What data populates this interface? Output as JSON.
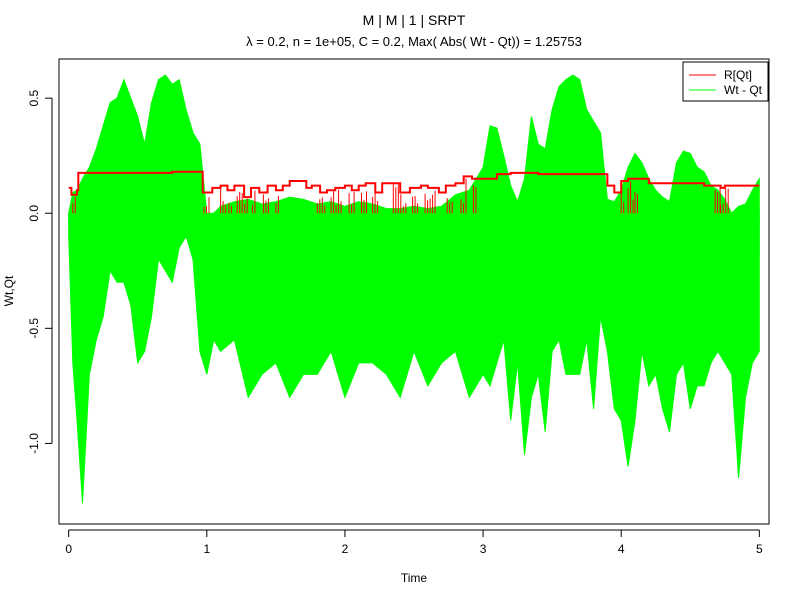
{
  "chart_data": {
    "type": "line",
    "title": "M | M | 1 | SRPT",
    "subtitle": "λ = 0.2, n = 1e+05, C = 0.2, Max( Abs( Wt - Qt)) = 1.25753",
    "xlabel": "Time",
    "ylabel": "Wt,Qt",
    "xlim": [
      -0.07,
      5.07
    ],
    "ylim": [
      -1.35,
      0.67
    ],
    "x_ticks": [
      0,
      1,
      2,
      3,
      4,
      5
    ],
    "x_tick_labels": [
      "0",
      "1",
      "2",
      "3",
      "4",
      "5"
    ],
    "y_ticks": [
      -1.0,
      -0.5,
      0.0,
      0.5
    ],
    "y_tick_labels": [
      "-1.0",
      "-0.5",
      "0.0",
      "0.5"
    ],
    "grid": false,
    "legend_position": "top-right",
    "series": [
      {
        "name": "R[Qt]",
        "color": "#ff0000",
        "style": "step",
        "x": [
          0.0,
          0.02,
          0.06,
          0.07,
          0.5,
          0.75,
          0.95,
          0.97,
          1.04,
          1.1,
          1.15,
          1.2,
          1.27,
          1.32,
          1.38,
          1.44,
          1.5,
          1.55,
          1.6,
          1.65,
          1.72,
          1.76,
          1.82,
          1.87,
          1.93,
          2.0,
          2.05,
          2.1,
          2.15,
          2.22,
          2.27,
          2.3,
          2.4,
          2.47,
          2.55,
          2.6,
          2.68,
          2.73,
          2.8,
          2.86,
          2.92,
          3.05,
          3.1,
          3.2,
          3.4,
          3.6,
          3.85,
          3.9,
          3.95,
          4.0,
          4.05,
          4.15,
          4.2,
          4.3,
          4.5,
          4.6,
          4.72,
          4.75,
          4.8,
          4.9,
          5.0
        ],
        "values": [
          0.11,
          0.08,
          0.1,
          0.175,
          0.175,
          0.18,
          0.18,
          0.09,
          0.11,
          0.12,
          0.1,
          0.12,
          0.07,
          0.11,
          0.09,
          0.12,
          0.1,
          0.12,
          0.14,
          0.14,
          0.11,
          0.12,
          0.09,
          0.1,
          0.11,
          0.12,
          0.1,
          0.12,
          0.13,
          0.09,
          0.13,
          0.13,
          0.09,
          0.11,
          0.12,
          0.11,
          0.09,
          0.12,
          0.13,
          0.16,
          0.15,
          0.15,
          0.17,
          0.175,
          0.17,
          0.17,
          0.17,
          0.12,
          0.09,
          0.14,
          0.15,
          0.15,
          0.13,
          0.13,
          0.13,
          0.12,
          0.11,
          0.12,
          0.12,
          0.12,
          0.12
        ],
        "spikes_to_zero": [
          [
            0.03,
            0.06
          ],
          [
            0.98,
            1.02
          ],
          [
            1.1,
            1.14
          ],
          [
            1.16,
            1.19
          ],
          [
            1.22,
            1.3
          ],
          [
            1.33,
            1.36
          ],
          [
            1.41,
            1.46
          ],
          [
            1.5,
            1.53
          ],
          [
            1.8,
            1.86
          ],
          [
            1.9,
            1.98
          ],
          [
            2.03,
            2.07
          ],
          [
            2.12,
            2.16
          ],
          [
            2.2,
            2.24
          ],
          [
            2.35,
            2.45
          ],
          [
            2.49,
            2.54
          ],
          [
            2.58,
            2.66
          ],
          [
            2.74,
            2.78
          ],
          [
            2.84,
            2.88
          ],
          [
            2.93,
            2.96
          ],
          [
            4.0,
            4.02
          ],
          [
            4.05,
            4.1
          ],
          [
            4.1,
            4.13
          ],
          [
            4.68,
            4.72
          ],
          [
            4.72,
            4.78
          ]
        ]
      },
      {
        "name": "Wt - Qt",
        "color": "#00ff00",
        "style": "envelope",
        "x": [
          0.0,
          0.03,
          0.06,
          0.1,
          0.15,
          0.2,
          0.25,
          0.3,
          0.35,
          0.4,
          0.45,
          0.5,
          0.55,
          0.6,
          0.65,
          0.7,
          0.75,
          0.8,
          0.85,
          0.9,
          0.95,
          1.0,
          1.05,
          1.1,
          1.2,
          1.3,
          1.4,
          1.5,
          1.6,
          1.7,
          1.8,
          1.9,
          2.0,
          2.1,
          2.2,
          2.3,
          2.4,
          2.5,
          2.6,
          2.7,
          2.8,
          2.9,
          3.0,
          3.05,
          3.1,
          3.15,
          3.2,
          3.25,
          3.3,
          3.35,
          3.4,
          3.45,
          3.5,
          3.55,
          3.6,
          3.65,
          3.7,
          3.75,
          3.8,
          3.85,
          3.9,
          3.95,
          4.0,
          4.05,
          4.1,
          4.15,
          4.2,
          4.25,
          4.3,
          4.35,
          4.4,
          4.45,
          4.5,
          4.55,
          4.6,
          4.65,
          4.7,
          4.75,
          4.8,
          4.85,
          4.9,
          4.95,
          5.0
        ],
        "upper": [
          0.0,
          0.09,
          0.1,
          0.15,
          0.2,
          0.28,
          0.38,
          0.48,
          0.5,
          0.58,
          0.5,
          0.42,
          0.3,
          0.48,
          0.58,
          0.6,
          0.56,
          0.58,
          0.45,
          0.35,
          0.3,
          0.0,
          0.0,
          0.03,
          0.05,
          0.06,
          0.04,
          0.05,
          0.07,
          0.06,
          0.04,
          0.05,
          0.03,
          0.05,
          0.04,
          0.02,
          0.02,
          0.03,
          0.02,
          0.03,
          0.08,
          0.1,
          0.2,
          0.38,
          0.37,
          0.25,
          0.12,
          0.05,
          0.15,
          0.42,
          0.3,
          0.28,
          0.45,
          0.55,
          0.58,
          0.6,
          0.58,
          0.45,
          0.4,
          0.35,
          0.06,
          0.05,
          0.1,
          0.2,
          0.26,
          0.22,
          0.15,
          0.1,
          0.07,
          0.05,
          0.22,
          0.27,
          0.26,
          0.2,
          0.18,
          0.12,
          0.1,
          0.06,
          0.0,
          0.03,
          0.04,
          0.1,
          0.15
        ],
        "lower": [
          -0.1,
          -0.65,
          -0.9,
          -1.26,
          -0.7,
          -0.55,
          -0.45,
          -0.25,
          -0.3,
          -0.3,
          -0.4,
          -0.65,
          -0.6,
          -0.45,
          -0.2,
          -0.25,
          -0.3,
          -0.15,
          -0.1,
          -0.2,
          -0.6,
          -0.7,
          -0.55,
          -0.6,
          -0.55,
          -0.8,
          -0.7,
          -0.65,
          -0.8,
          -0.7,
          -0.7,
          -0.6,
          -0.8,
          -0.65,
          -0.65,
          -0.7,
          -0.8,
          -0.6,
          -0.75,
          -0.65,
          -0.6,
          -0.8,
          -0.7,
          -0.75,
          -0.65,
          -0.55,
          -0.9,
          -0.65,
          -1.05,
          -0.8,
          -0.7,
          -0.95,
          -0.6,
          -0.55,
          -0.7,
          -0.7,
          -0.7,
          -0.55,
          -0.85,
          -0.45,
          -0.6,
          -0.85,
          -0.9,
          -1.1,
          -0.9,
          -0.6,
          -0.75,
          -0.7,
          -0.85,
          -0.95,
          -0.7,
          -0.65,
          -0.85,
          -0.75,
          -0.75,
          -0.65,
          -0.6,
          -0.65,
          -0.7,
          -1.15,
          -0.8,
          -0.65,
          -0.6
        ]
      }
    ]
  }
}
